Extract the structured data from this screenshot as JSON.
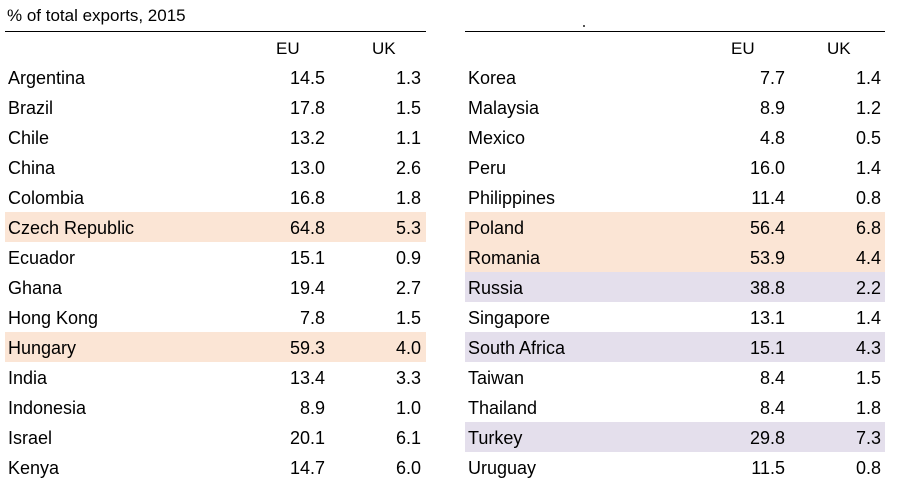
{
  "caption": "% of total exports, 2015",
  "columns": {
    "eu": "EU",
    "uk": "UK"
  },
  "highlight_colors": {
    "orange": "#fbe5d5",
    "purple": "#e4dfec"
  },
  "left_table": {
    "rows": [
      {
        "country": "Argentina",
        "eu": "14.5",
        "uk": "1.3",
        "highlight": ""
      },
      {
        "country": "Brazil",
        "eu": "17.8",
        "uk": "1.5",
        "highlight": ""
      },
      {
        "country": "Chile",
        "eu": "13.2",
        "uk": "1.1",
        "highlight": ""
      },
      {
        "country": "China",
        "eu": "13.0",
        "uk": "2.6",
        "highlight": ""
      },
      {
        "country": "Colombia",
        "eu": "16.8",
        "uk": "1.8",
        "highlight": ""
      },
      {
        "country": "Czech Republic",
        "eu": "64.8",
        "uk": "5.3",
        "highlight": "orange"
      },
      {
        "country": "Ecuador",
        "eu": "15.1",
        "uk": "0.9",
        "highlight": ""
      },
      {
        "country": "Ghana",
        "eu": "19.4",
        "uk": "2.7",
        "highlight": ""
      },
      {
        "country": "Hong Kong",
        "eu": "7.8",
        "uk": "1.5",
        "highlight": ""
      },
      {
        "country": "Hungary",
        "eu": "59.3",
        "uk": "4.0",
        "highlight": "orange"
      },
      {
        "country": "India",
        "eu": "13.4",
        "uk": "3.3",
        "highlight": ""
      },
      {
        "country": "Indonesia",
        "eu": "8.9",
        "uk": "1.0",
        "highlight": ""
      },
      {
        "country": "Israel",
        "eu": "20.1",
        "uk": "6.1",
        "highlight": ""
      },
      {
        "country": "Kenya",
        "eu": "14.7",
        "uk": "6.0",
        "highlight": ""
      }
    ]
  },
  "right_table": {
    "rows": [
      {
        "country": "Korea",
        "eu": "7.7",
        "uk": "1.4",
        "highlight": ""
      },
      {
        "country": "Malaysia",
        "eu": "8.9",
        "uk": "1.2",
        "highlight": ""
      },
      {
        "country": "Mexico",
        "eu": "4.8",
        "uk": "0.5",
        "highlight": ""
      },
      {
        "country": "Peru",
        "eu": "16.0",
        "uk": "1.4",
        "highlight": ""
      },
      {
        "country": "Philippines",
        "eu": "11.4",
        "uk": "0.8",
        "highlight": ""
      },
      {
        "country": "Poland",
        "eu": "56.4",
        "uk": "6.8",
        "highlight": "orange"
      },
      {
        "country": "Romania",
        "eu": "53.9",
        "uk": "4.4",
        "highlight": "orange"
      },
      {
        "country": "Russia",
        "eu": "38.8",
        "uk": "2.2",
        "highlight": "purple"
      },
      {
        "country": "Singapore",
        "eu": "13.1",
        "uk": "1.4",
        "highlight": ""
      },
      {
        "country": "South Africa",
        "eu": "15.1",
        "uk": "4.3",
        "highlight": "purple"
      },
      {
        "country": "Taiwan",
        "eu": "8.4",
        "uk": "1.5",
        "highlight": ""
      },
      {
        "country": "Thailand",
        "eu": "8.4",
        "uk": "1.8",
        "highlight": ""
      },
      {
        "country": "Turkey",
        "eu": "29.8",
        "uk": "7.3",
        "highlight": "purple"
      },
      {
        "country": "Uruguay",
        "eu": "11.5",
        "uk": "0.8",
        "highlight": ""
      }
    ]
  }
}
